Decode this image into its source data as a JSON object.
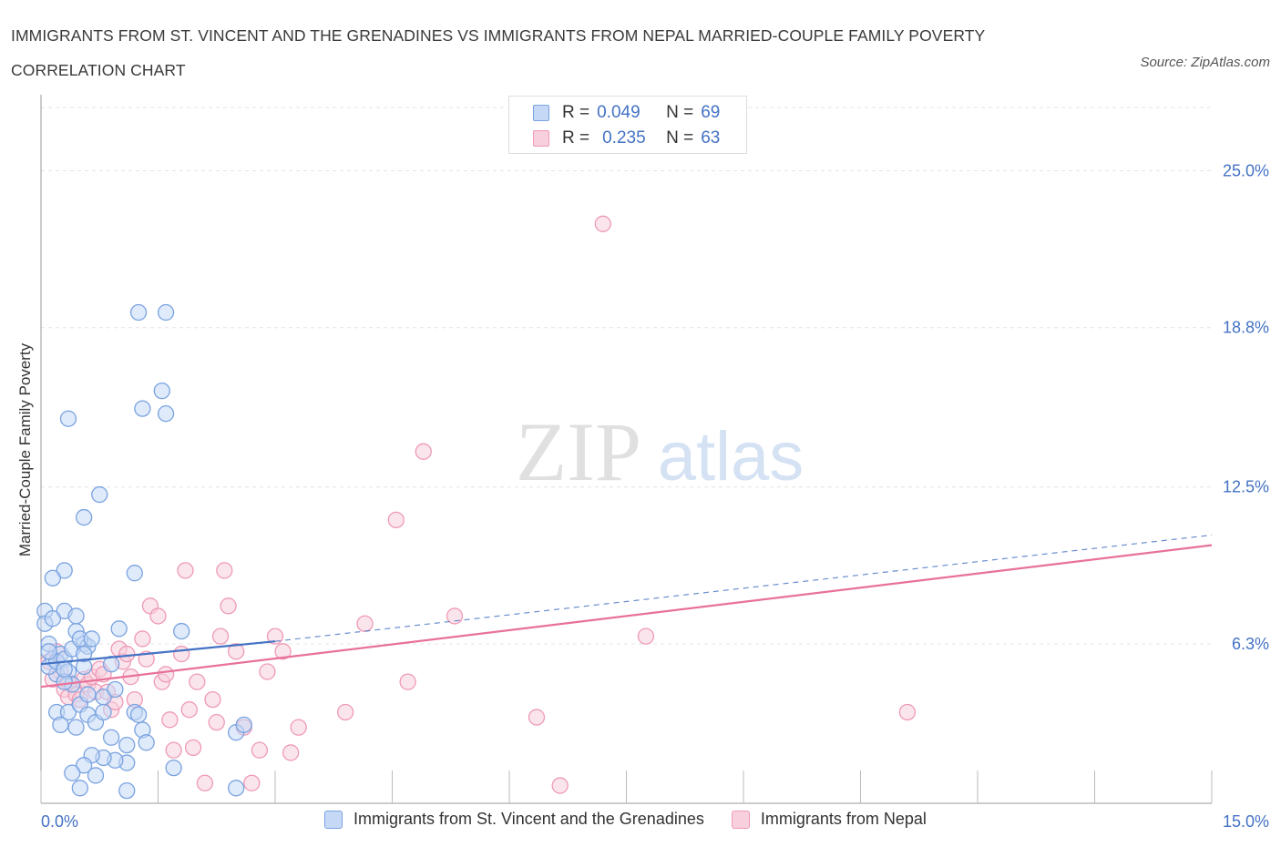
{
  "title_line1": "IMMIGRANTS FROM ST. VINCENT AND THE GRENADINES VS IMMIGRANTS FROM NEPAL MARRIED-COUPLE FAMILY POVERTY",
  "title_line2": "CORRELATION CHART",
  "source": "Source: ZipAtlas.com",
  "watermark": {
    "zip": "ZIP",
    "atlas": "atlas"
  },
  "colors": {
    "blue": "#4472c4",
    "blue_fill": "#c5d8f5",
    "blue_stroke": "#7aa3e0",
    "pink": "#e8719a",
    "pink_fill": "#f8cfdc",
    "pink_stroke": "#ee9ab6",
    "tick_text": "#4472c4",
    "grid": "#e4e4e4"
  },
  "legend_top": [
    {
      "r_label": "R =",
      "r_value": "0.049",
      "n_label": "N =",
      "n_value": "69"
    },
    {
      "r_label": "R =",
      "r_value": "0.235",
      "n_label": "N =",
      "n_value": "63"
    }
  ],
  "legend_bottom": [
    "Immigrants from St. Vincent and the Grenadines",
    "Immigrants from Nepal"
  ],
  "chart_data": {
    "type": "scatter",
    "title": "IMMIGRANTS FROM ST. VINCENT AND THE GRENADINES VS IMMIGRANTS FROM NEPAL MARRIED-COUPLE FAMILY POVERTY CORRELATION CHART",
    "xlabel": "",
    "ylabel": "Married-Couple Family Poverty",
    "xlim": [
      0,
      15
    ],
    "ylim": [
      0,
      27.5
    ],
    "x_tick_labels": [
      {
        "value": 0,
        "label": "0.0%"
      },
      {
        "value": 15,
        "label": "15.0%"
      }
    ],
    "y_tick_labels": [
      {
        "value": 6.3,
        "label": "6.3%"
      },
      {
        "value": 12.5,
        "label": "12.5%"
      },
      {
        "value": 18.8,
        "label": "18.8%"
      },
      {
        "value": 25.0,
        "label": "25.0%"
      }
    ],
    "x_minor_ticks": [
      0,
      1.5,
      3,
      4.5,
      6,
      7.5,
      9,
      10.5,
      12,
      13.5,
      15
    ],
    "series": [
      {
        "name": "Immigrants from St. Vincent and the Grenadines",
        "color": "blue",
        "R": 0.049,
        "N": 69,
        "trend": {
          "x0": 0,
          "y0": 5.5,
          "x1": 3.0,
          "y1": 6.4,
          "dash_to_x": 15,
          "dash_to_y": 10.6
        },
        "points": [
          [
            0.05,
            7.6
          ],
          [
            0.05,
            7.1
          ],
          [
            0.1,
            6.3
          ],
          [
            0.15,
            5.7
          ],
          [
            0.2,
            5.1
          ],
          [
            0.1,
            5.4
          ],
          [
            0.25,
            5.9
          ],
          [
            0.2,
            5.6
          ],
          [
            0.3,
            5.7
          ],
          [
            0.35,
            5.2
          ],
          [
            0.4,
            6.1
          ],
          [
            0.45,
            6.8
          ],
          [
            0.55,
            6.3
          ],
          [
            0.6,
            6.2
          ],
          [
            0.5,
            6.5
          ],
          [
            0.65,
            6.5
          ],
          [
            0.55,
            5.4
          ],
          [
            0.4,
            4.7
          ],
          [
            0.3,
            4.8
          ],
          [
            0.2,
            3.6
          ],
          [
            0.35,
            3.6
          ],
          [
            0.25,
            3.1
          ],
          [
            0.45,
            3.0
          ],
          [
            0.5,
            3.9
          ],
          [
            0.6,
            3.5
          ],
          [
            0.7,
            3.2
          ],
          [
            0.8,
            4.2
          ],
          [
            0.9,
            5.5
          ],
          [
            0.95,
            4.5
          ],
          [
            1.0,
            6.9
          ],
          [
            1.2,
            3.6
          ],
          [
            1.25,
            3.5
          ],
          [
            1.3,
            2.9
          ],
          [
            1.35,
            2.4
          ],
          [
            1.1,
            1.6
          ],
          [
            0.95,
            1.7
          ],
          [
            0.8,
            1.8
          ],
          [
            0.65,
            1.9
          ],
          [
            0.55,
            1.5
          ],
          [
            0.4,
            1.2
          ],
          [
            0.5,
            0.6
          ],
          [
            0.7,
            1.1
          ],
          [
            1.1,
            0.5
          ],
          [
            1.7,
            1.4
          ],
          [
            2.5,
            2.8
          ],
          [
            2.6,
            3.1
          ],
          [
            2.5,
            0.6
          ],
          [
            1.8,
            6.8
          ],
          [
            1.2,
            9.1
          ],
          [
            0.55,
            11.3
          ],
          [
            0.75,
            12.2
          ],
          [
            0.35,
            15.2
          ],
          [
            1.3,
            15.6
          ],
          [
            1.55,
            16.3
          ],
          [
            1.6,
            15.4
          ],
          [
            1.25,
            19.4
          ],
          [
            1.6,
            19.4
          ],
          [
            0.3,
            9.2
          ],
          [
            0.15,
            8.9
          ],
          [
            0.3,
            7.6
          ],
          [
            0.45,
            7.4
          ],
          [
            0.55,
            5.9
          ],
          [
            0.1,
            6.0
          ],
          [
            0.3,
            5.3
          ],
          [
            0.6,
            4.3
          ],
          [
            0.8,
            3.6
          ],
          [
            0.9,
            2.6
          ],
          [
            1.1,
            2.3
          ],
          [
            0.15,
            7.3
          ]
        ]
      },
      {
        "name": "Immigrants from Nepal",
        "color": "pink",
        "R": 0.235,
        "N": 63,
        "trend": {
          "x0": 0,
          "y0": 4.6,
          "x1": 15,
          "y1": 10.2
        },
        "points": [
          [
            0.1,
            5.6
          ],
          [
            0.2,
            6.0
          ],
          [
            0.25,
            5.2
          ],
          [
            0.3,
            4.5
          ],
          [
            0.35,
            4.2
          ],
          [
            0.4,
            4.7
          ],
          [
            0.45,
            4.3
          ],
          [
            0.5,
            4.1
          ],
          [
            0.55,
            4.9
          ],
          [
            0.6,
            4.7
          ],
          [
            0.65,
            5.0
          ],
          [
            0.7,
            4.4
          ],
          [
            0.75,
            5.3
          ],
          [
            0.8,
            5.1
          ],
          [
            0.85,
            4.4
          ],
          [
            0.9,
            3.7
          ],
          [
            0.95,
            4.0
          ],
          [
            1.0,
            6.1
          ],
          [
            1.05,
            5.6
          ],
          [
            1.1,
            5.9
          ],
          [
            1.15,
            5.0
          ],
          [
            1.2,
            4.1
          ],
          [
            1.3,
            6.5
          ],
          [
            1.35,
            5.7
          ],
          [
            1.4,
            7.8
          ],
          [
            1.5,
            7.4
          ],
          [
            1.55,
            4.8
          ],
          [
            1.6,
            5.1
          ],
          [
            1.65,
            3.3
          ],
          [
            1.7,
            2.1
          ],
          [
            1.8,
            5.9
          ],
          [
            1.9,
            3.7
          ],
          [
            1.95,
            2.2
          ],
          [
            2.0,
            4.8
          ],
          [
            2.1,
            0.8
          ],
          [
            2.2,
            4.1
          ],
          [
            2.25,
            3.2
          ],
          [
            2.3,
            6.6
          ],
          [
            2.4,
            7.8
          ],
          [
            2.5,
            6.0
          ],
          [
            2.6,
            3.0
          ],
          [
            2.7,
            0.8
          ],
          [
            2.8,
            2.1
          ],
          [
            2.9,
            5.2
          ],
          [
            3.0,
            6.6
          ],
          [
            3.1,
            6.0
          ],
          [
            3.2,
            2.0
          ],
          [
            3.3,
            3.0
          ],
          [
            3.9,
            3.6
          ],
          [
            4.15,
            7.1
          ],
          [
            4.55,
            11.2
          ],
          [
            4.7,
            4.8
          ],
          [
            4.9,
            13.9
          ],
          [
            5.3,
            7.4
          ],
          [
            6.35,
            3.4
          ],
          [
            6.65,
            0.7
          ],
          [
            7.2,
            22.9
          ],
          [
            7.75,
            6.6
          ],
          [
            11.1,
            3.6
          ],
          [
            1.85,
            9.2
          ],
          [
            2.35,
            9.2
          ],
          [
            0.35,
            4.8
          ],
          [
            0.15,
            4.9
          ]
        ]
      }
    ]
  }
}
